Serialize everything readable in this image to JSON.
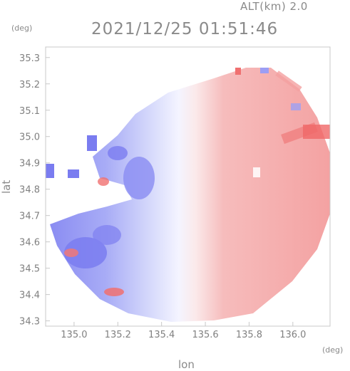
{
  "header": {
    "altitude": "ALT(km) 2.0",
    "timestamp": "2021/12/25 01:51:46"
  },
  "axes": {
    "y_unit": "(deg)",
    "x_unit": "(deg)",
    "y_label": "lat",
    "x_label": "lon",
    "y_ticks": [
      "35.3",
      "35.2",
      "35.1",
      "35.0",
      "34.9",
      "34.8",
      "34.7",
      "34.6",
      "34.5",
      "34.4",
      "34.3"
    ],
    "x_ticks": [
      "135.0",
      "135.2",
      "135.4",
      "135.6",
      "135.8",
      "136.0"
    ],
    "xlim": [
      134.87,
      136.17
    ],
    "ylim": [
      34.28,
      35.34
    ]
  },
  "colors": {
    "frame": "#c8c8c8",
    "approaching": "#7070f0",
    "receding": "#f07070",
    "pale_blue": "#d8dcff",
    "pale_red": "#ffd0d0"
  }
}
